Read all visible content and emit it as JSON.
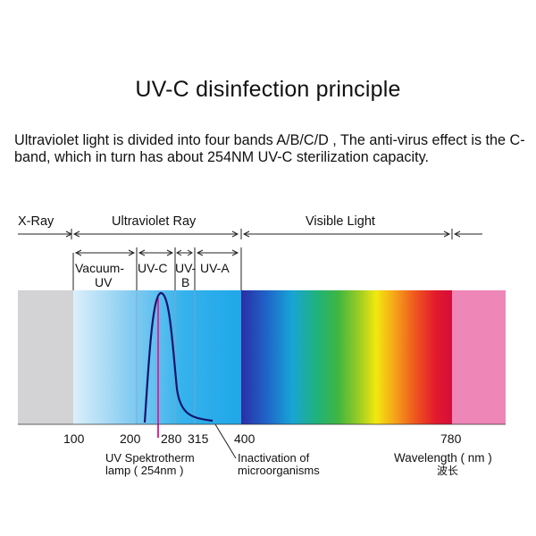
{
  "title": "UV-C disinfection principle",
  "description": "Ultraviolet light is divided into four bands  A/B/C/D , The anti-virus effect is the C-band, which in turn has about 254NM UV-C sterilization capacity.",
  "regions": {
    "xray": "X-Ray",
    "ultraviolet": "Ultraviolet Ray",
    "visible": "Visible Light"
  },
  "bands": {
    "vacuum_line1": "Vacuum-",
    "vacuum_line2": "UV",
    "uvc": "UV-C",
    "uvb_line1": "UV-",
    "uvb_line2": "B",
    "uva": "UV-A"
  },
  "ticks": [
    "100",
    "200",
    "280",
    "315",
    "400",
    "780"
  ],
  "annotations": {
    "lamp_line1": "UV Spektrotherm",
    "lamp_line2": "lamp ( 254nm )",
    "inactivation_line1": "Inactivation  of",
    "inactivation_line2": "microorganisms",
    "wavelength_line1": "Wavelength ( nm )",
    "wavelength_line2": "波长"
  },
  "colors": {
    "lamp_line": "#e0279a",
    "curve": "#14146e",
    "visible_end": "#ef86b8"
  }
}
